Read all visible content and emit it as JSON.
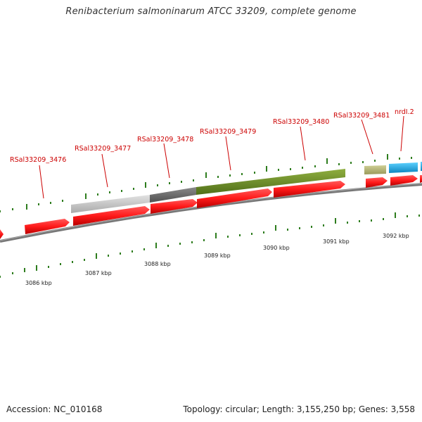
{
  "title": "Renibacterium salmoninarum ATCC 33209, complete genome",
  "footer": {
    "accession": "Accession: NC_010168",
    "summary": "Topology: circular; Length: 3,155,250 bp; Genes: 3,558"
  },
  "gene_labels": [
    "RSal33209_3476",
    "RSal33209_3477",
    "RSal33209_3478",
    "RSal33209_3479",
    "RSal33209_3480",
    "RSal33209_3481",
    "nrdI.2"
  ],
  "kbp_labels": [
    "3086 kbp",
    "3087 kbp",
    "3088 kbp",
    "3089 kbp",
    "3090 kbp",
    "3091 kbp",
    "3092 kbp"
  ],
  "colors": {
    "cds_red": "#ff1a1a",
    "gene_label_red": "#cc0000",
    "tick_green": "#2e7d1e",
    "backbone_gray": "#777777",
    "feature_light_gray": "#c8c8c8",
    "feature_dark_gray": "#707070",
    "feature_olive": "#6f8f2a",
    "feature_khaki": "#b8b878",
    "feature_cyan": "#1aa7e0"
  }
}
